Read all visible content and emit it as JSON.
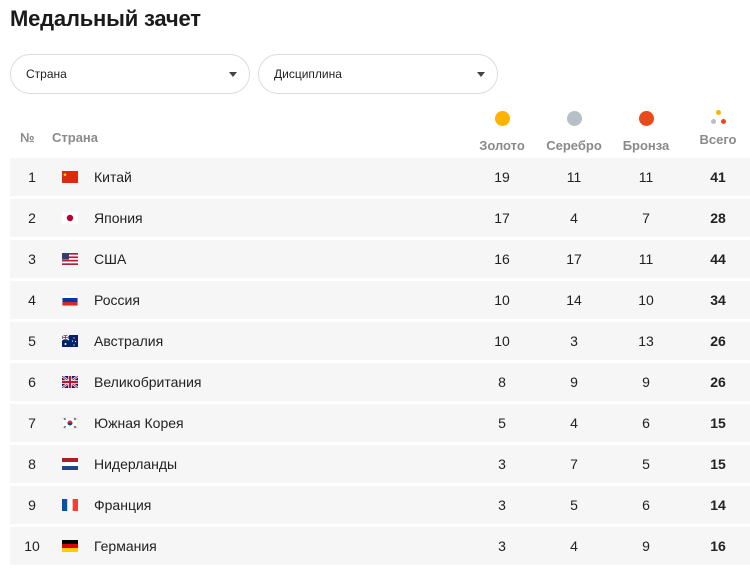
{
  "page": {
    "title": "Медальный зачет"
  },
  "filters": {
    "country": {
      "value": "Страна"
    },
    "discipline": {
      "value": "Дисциплина"
    }
  },
  "table": {
    "columns": {
      "rank": "№",
      "country": "Страна",
      "gold": "Золото",
      "silver": "Серебро",
      "bronze": "Бронза",
      "total": "Всего"
    },
    "medal_colors": {
      "gold": "#ffb300",
      "silver": "#b7c0c4",
      "bronze": "#e84a1c"
    },
    "rows": [
      {
        "rank": "1",
        "flag": "china-flag-icon",
        "country": "Китай",
        "gold": "19",
        "silver": "11",
        "bronze": "11",
        "total": "41"
      },
      {
        "rank": "2",
        "flag": "japan-flag-icon",
        "country": "Япония",
        "gold": "17",
        "silver": "4",
        "bronze": "7",
        "total": "28"
      },
      {
        "rank": "3",
        "flag": "usa-flag-icon",
        "country": "США",
        "gold": "16",
        "silver": "17",
        "bronze": "11",
        "total": "44"
      },
      {
        "rank": "4",
        "flag": "russia-flag-icon",
        "country": "Россия",
        "gold": "10",
        "silver": "14",
        "bronze": "10",
        "total": "34"
      },
      {
        "rank": "5",
        "flag": "australia-flag-icon",
        "country": "Австралия",
        "gold": "10",
        "silver": "3",
        "bronze": "13",
        "total": "26"
      },
      {
        "rank": "6",
        "flag": "uk-flag-icon",
        "country": "Великобритания",
        "gold": "8",
        "silver": "9",
        "bronze": "9",
        "total": "26"
      },
      {
        "rank": "7",
        "flag": "south-korea-flag-icon",
        "country": "Южная Корея",
        "gold": "5",
        "silver": "4",
        "bronze": "6",
        "total": "15"
      },
      {
        "rank": "8",
        "flag": "netherlands-flag-icon",
        "country": "Нидерланды",
        "gold": "3",
        "silver": "7",
        "bronze": "5",
        "total": "15"
      },
      {
        "rank": "9",
        "flag": "france-flag-icon",
        "country": "Франция",
        "gold": "3",
        "silver": "5",
        "bronze": "6",
        "total": "14"
      },
      {
        "rank": "10",
        "flag": "germany-flag-icon",
        "country": "Германия",
        "gold": "3",
        "silver": "4",
        "bronze": "9",
        "total": "16"
      }
    ]
  }
}
